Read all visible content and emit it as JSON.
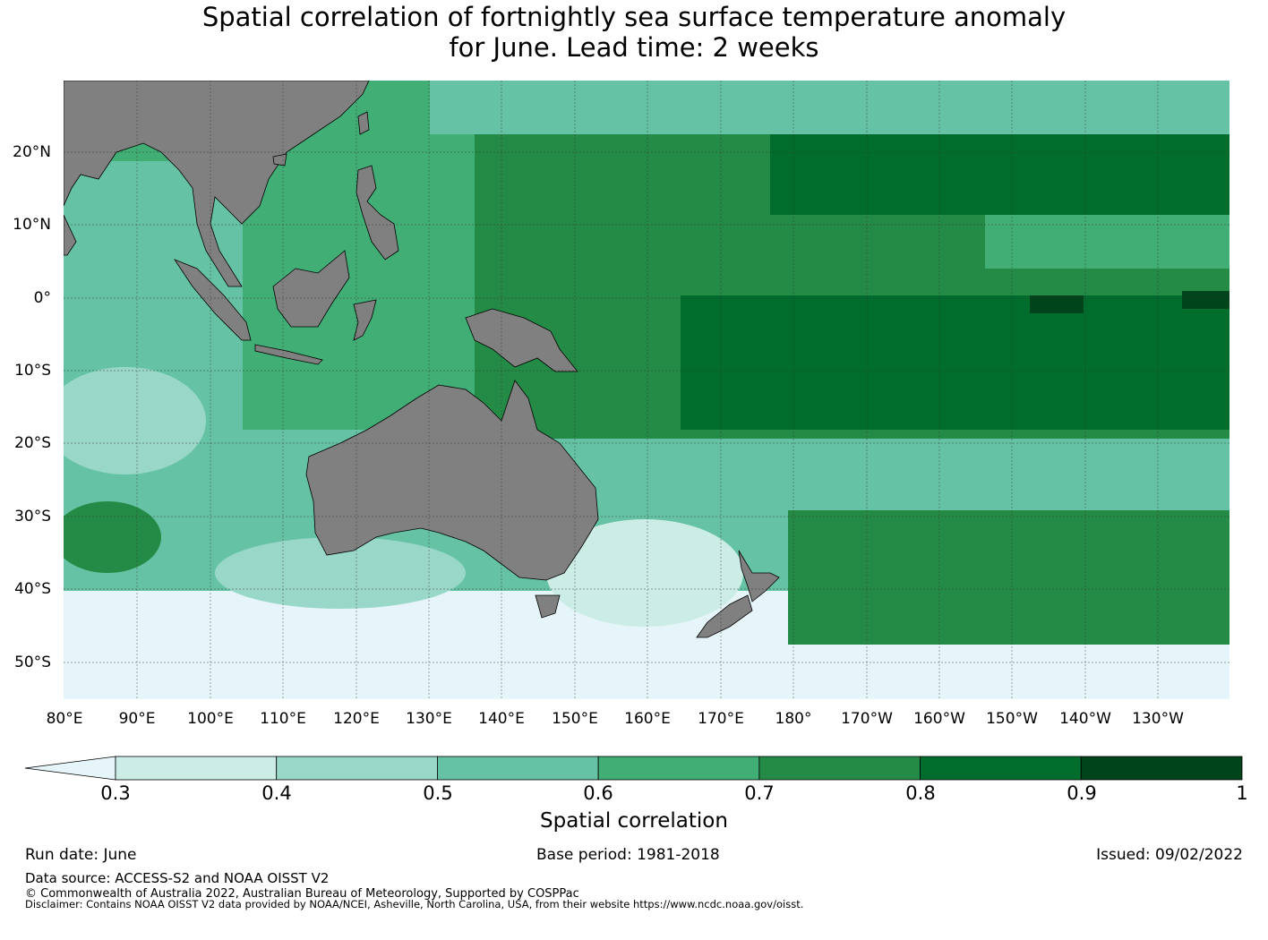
{
  "title_line1": "Spatial correlation of fortnightly sea surface temperature anomaly",
  "title_line2": "for June. Lead time: 2 weeks",
  "map": {
    "lon_labels": [
      "80°E",
      "90°E",
      "100°E",
      "110°E",
      "120°E",
      "130°E",
      "140°E",
      "150°E",
      "160°E",
      "170°E",
      "180°",
      "170°W",
      "160°W",
      "150°W",
      "140°W",
      "130°W"
    ],
    "lat_labels": [
      "20°N",
      "10°N",
      "0°",
      "10°S",
      "20°S",
      "30°S",
      "40°S",
      "50°S"
    ],
    "land_color": "#808080",
    "ocean_low_color": "#e5f5f9"
  },
  "colorbar": {
    "ticks": [
      "0.3",
      "0.4",
      "0.5",
      "0.6",
      "0.7",
      "0.8",
      "0.9",
      "1"
    ],
    "colors": [
      "#ccece6",
      "#99d8c9",
      "#66c2a4",
      "#41ae76",
      "#238b45",
      "#006d2c",
      "#00441b"
    ],
    "extend_color": "#e5f5f9",
    "label": "Spatial correlation"
  },
  "footer": {
    "run_date": "Run date: June",
    "base_period": "Base period: 1981-2018",
    "issued": "Issued: 09/02/2022",
    "data_source": "Data source: ACCESS-S2 and NOAA OISST V2",
    "copyright": "© Commonwealth of Australia 2022, Australian Bureau of Meteorology, Supported by COSPPac",
    "disclaimer": "Disclaimer: Contains NOAA OISST V2 data provided by NOAA/NCEI, Asheville, North Carolina, USA, from their website https://www.ncdc.noaa.gov/oisst."
  }
}
